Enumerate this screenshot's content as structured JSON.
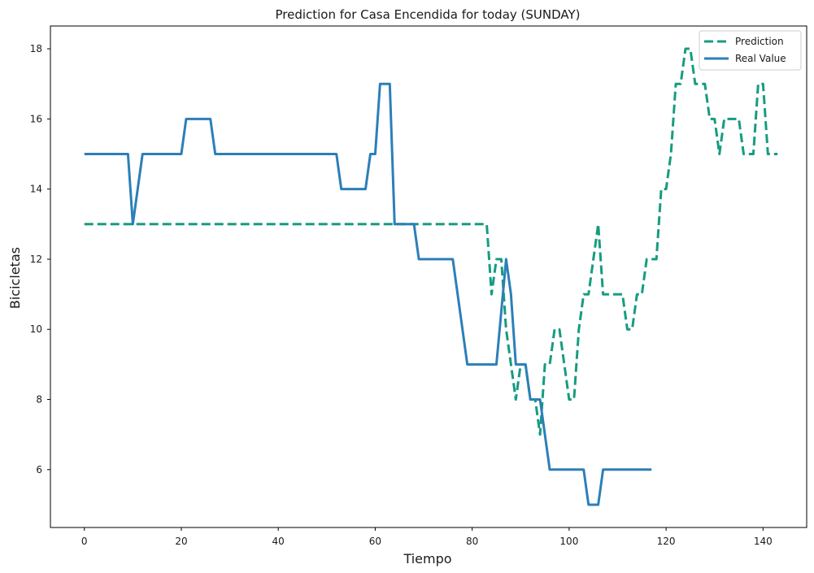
{
  "chart_data": {
    "type": "line",
    "title": "Prediction for Casa Encendida for today (SUNDAY)",
    "xlabel": "Tiempo",
    "ylabel": "Bicicletas",
    "xlim": [
      -7,
      149
    ],
    "ylim": [
      4.35,
      18.65
    ],
    "xticks": [
      0,
      20,
      40,
      60,
      80,
      100,
      120,
      140
    ],
    "yticks": [
      6,
      8,
      10,
      12,
      14,
      16,
      18
    ],
    "grid": false,
    "legend_position": "top-right",
    "series": [
      {
        "name": "Prediction",
        "style": "dashed",
        "color": "#169c80",
        "x": [
          0,
          83,
          84,
          85,
          86,
          87,
          88,
          89,
          90,
          91,
          92,
          93,
          94,
          95,
          96,
          97,
          98,
          99,
          100,
          101,
          102,
          103,
          104,
          105,
          106,
          107,
          108,
          109,
          110,
          111,
          112,
          113,
          114,
          115,
          116,
          117,
          118,
          119,
          120,
          121,
          122,
          123,
          124,
          125,
          126,
          127,
          128,
          129,
          130,
          131,
          132,
          133,
          134,
          135,
          136,
          137,
          138,
          139,
          140,
          141,
          142,
          143
        ],
        "y": [
          13,
          13,
          11,
          12,
          12,
          10,
          9,
          8,
          9,
          9,
          8,
          8,
          7,
          9,
          9,
          10,
          10,
          9,
          8,
          8,
          10,
          11,
          11,
          12,
          13,
          11,
          11,
          11,
          11,
          11,
          10,
          10,
          11,
          11,
          12,
          12,
          12,
          14,
          14,
          15,
          17,
          17,
          18,
          18,
          17,
          17,
          17,
          16,
          16,
          15,
          16,
          16,
          16,
          16,
          15,
          15,
          15,
          17,
          17,
          15,
          15,
          15
        ]
      },
      {
        "name": "Real Value",
        "style": "solid",
        "color": "#2c7fb8",
        "x": [
          0,
          9,
          10,
          11,
          12,
          20,
          21,
          26,
          27,
          52,
          53,
          58,
          59,
          60,
          61,
          63,
          64,
          68,
          69,
          76,
          79,
          85,
          87,
          88,
          89,
          91,
          92,
          94,
          96,
          103,
          104,
          106,
          107,
          117
        ],
        "y": [
          15,
          15,
          13,
          14,
          15,
          15,
          16,
          16,
          15,
          15,
          14,
          14,
          15,
          15,
          17,
          17,
          13,
          13,
          12,
          12,
          9,
          9,
          12,
          11,
          9,
          9,
          8,
          8,
          6,
          6,
          5,
          5,
          6,
          6
        ]
      }
    ]
  }
}
